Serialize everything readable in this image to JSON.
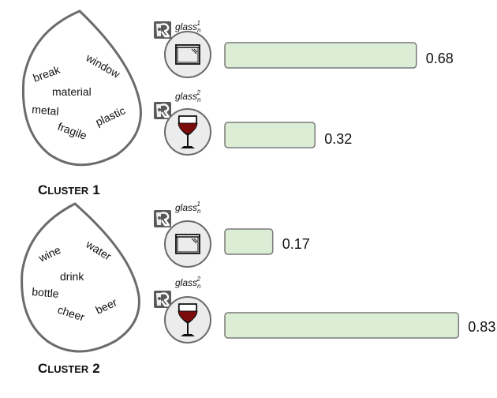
{
  "clusters": [
    {
      "title_first": "C",
      "title_rest": "LUSTER",
      "title_num": "1",
      "words": [
        "break",
        "window",
        "material",
        "metal",
        "fragile",
        "plastic"
      ],
      "senses": [
        {
          "name": "glass",
          "sub": "n",
          "sup": "1",
          "icon": "window-icon",
          "value": 0.68,
          "label": "0.68"
        },
        {
          "name": "glass",
          "sub": "n",
          "sup": "2",
          "icon": "wine-glass-icon",
          "value": 0.32,
          "label": "0.32"
        }
      ]
    },
    {
      "title_first": "C",
      "title_rest": "LUSTER",
      "title_num": "2",
      "words": [
        "wine",
        "water",
        "drink",
        "bottle",
        "cheer",
        "beer"
      ],
      "senses": [
        {
          "name": "glass",
          "sub": "n",
          "sup": "1",
          "icon": "window-icon",
          "value": 0.17,
          "label": "0.17"
        },
        {
          "name": "glass",
          "sub": "n",
          "sup": "2",
          "icon": "wine-glass-icon",
          "value": 0.83,
          "label": "0.83"
        }
      ]
    }
  ],
  "colors": {
    "bar_fill": "#dcedd5",
    "bar_stroke": "#7a7a7a",
    "drop_stroke": "#6b6b6b",
    "circle_fill": "#ececec",
    "badge_fill": "#5a5a5a",
    "wine": "#7a0c0c"
  }
}
